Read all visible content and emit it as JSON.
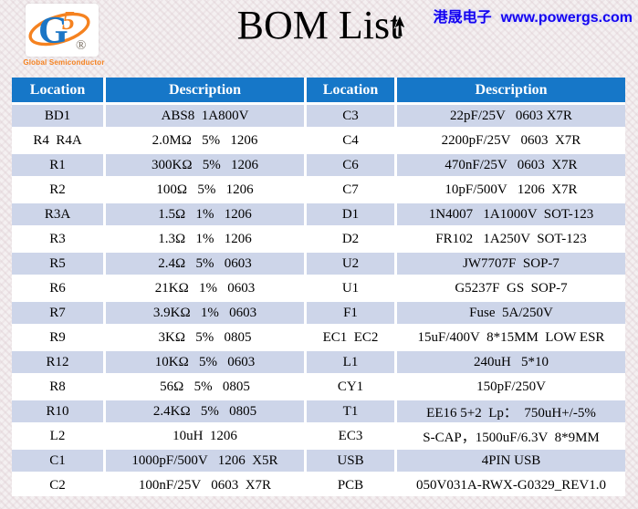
{
  "brand": {
    "logo_g": "G",
    "logo_5": "5",
    "registered_mark": "®",
    "tagline": "Global Semiconductor"
  },
  "header": {
    "title": "BOM List",
    "site_name": "港晟电子",
    "site_url": "www.powergs.com"
  },
  "colors": {
    "header_blue": "#1677c8",
    "row_alt_blue": "#cdd5e9",
    "row_white": "#ffffff",
    "site_text_blue": "#1402f0",
    "logo_orange": "#f58220",
    "logo_blue": "#1b75c5",
    "title_black": "#000000"
  },
  "icons": {
    "mouse_cursor": "up-arrow-pointer"
  },
  "table": {
    "columns": [
      "Location",
      "Description",
      "Location",
      "Description"
    ],
    "rows": [
      {
        "loc1": "BD1",
        "desc1": "ABS8  1A800V",
        "loc2": "C3",
        "desc2": "22pF/25V   0603 X7R"
      },
      {
        "loc1": "R4  R4A",
        "desc1": "2.0MΩ   5%   1206",
        "loc2": "C4",
        "desc2": "2200pF/25V   0603  X7R"
      },
      {
        "loc1": "R1",
        "desc1": "300KΩ   5%   1206",
        "loc2": "C6",
        "desc2": "470nF/25V   0603  X7R"
      },
      {
        "loc1": "R2",
        "desc1": "100Ω   5%   1206",
        "loc2": "C7",
        "desc2": "10pF/500V   1206  X7R"
      },
      {
        "loc1": "R3A",
        "desc1": "1.5Ω   1%   1206",
        "loc2": "D1",
        "desc2": "1N4007   1A1000V  SOT-123"
      },
      {
        "loc1": "R3",
        "desc1": "1.3Ω   1%   1206",
        "loc2": "D2",
        "desc2": "FR102   1A250V  SOT-123"
      },
      {
        "loc1": "R5",
        "desc1": "2.4Ω   5%   0603",
        "loc2": "U2",
        "desc2": "JW7707F  SOP-7"
      },
      {
        "loc1": "R6",
        "desc1": "21KΩ   1%   0603",
        "loc2": "U1",
        "desc2": "G5237F  GS  SOP-7"
      },
      {
        "loc1": "R7",
        "desc1": "3.9KΩ   1%   0603",
        "loc2": "F1",
        "desc2": "Fuse  5A/250V"
      },
      {
        "loc1": "R9",
        "desc1": "3KΩ   5%   0805",
        "loc2": "EC1  EC2",
        "desc2": "15uF/400V  8*15MM  LOW ESR"
      },
      {
        "loc1": "R12",
        "desc1": "10KΩ   5%   0603",
        "loc2": "L1",
        "desc2": "240uH   5*10"
      },
      {
        "loc1": "R8",
        "desc1": "56Ω   5%   0805",
        "loc2": "CY1",
        "desc2": "150pF/250V"
      },
      {
        "loc1": "R10",
        "desc1": "2.4KΩ   5%   0805",
        "loc2": "T1",
        "desc2": "EE16 5+2  Lp：  750uH+/-5%"
      },
      {
        "loc1": "L2",
        "desc1": "10uH  1206",
        "loc2": "EC3",
        "desc2": "S-CAP，1500uF/6.3V  8*9MM"
      },
      {
        "loc1": "C1",
        "desc1": "1000pF/500V   1206  X5R",
        "loc2": "USB",
        "desc2": "4PIN USB"
      },
      {
        "loc1": "C2",
        "desc1": "100nF/25V   0603  X7R",
        "loc2": "PCB",
        "desc2": "050V031A-RWX-G0329_REV1.0"
      }
    ]
  }
}
